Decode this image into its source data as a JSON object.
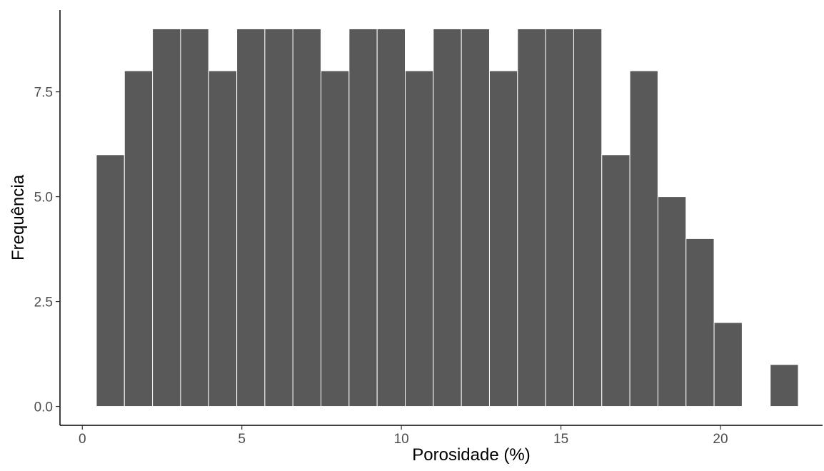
{
  "chart_data": {
    "type": "bar",
    "subtype": "histogram",
    "xlabel": "Porosidade (%)",
    "ylabel": "Frequência",
    "bin_width": 0.88,
    "bins": [
      {
        "start": 0.44,
        "end": 1.32,
        "count": 6
      },
      {
        "start": 1.32,
        "end": 2.2,
        "count": 8
      },
      {
        "start": 2.2,
        "end": 3.08,
        "count": 9
      },
      {
        "start": 3.08,
        "end": 3.96,
        "count": 9
      },
      {
        "start": 3.96,
        "end": 4.84,
        "count": 8
      },
      {
        "start": 4.84,
        "end": 5.72,
        "count": 9
      },
      {
        "start": 5.72,
        "end": 6.6,
        "count": 9
      },
      {
        "start": 6.6,
        "end": 7.48,
        "count": 9
      },
      {
        "start": 7.48,
        "end": 8.36,
        "count": 8
      },
      {
        "start": 8.36,
        "end": 9.24,
        "count": 9
      },
      {
        "start": 9.24,
        "end": 10.12,
        "count": 9
      },
      {
        "start": 10.12,
        "end": 11.0,
        "count": 8
      },
      {
        "start": 11.0,
        "end": 11.88,
        "count": 9
      },
      {
        "start": 11.88,
        "end": 12.76,
        "count": 9
      },
      {
        "start": 12.76,
        "end": 13.64,
        "count": 8
      },
      {
        "start": 13.64,
        "end": 14.52,
        "count": 9
      },
      {
        "start": 14.52,
        "end": 15.4,
        "count": 9
      },
      {
        "start": 15.4,
        "end": 16.28,
        "count": 9
      },
      {
        "start": 16.28,
        "end": 17.16,
        "count": 6
      },
      {
        "start": 17.16,
        "end": 18.04,
        "count": 8
      },
      {
        "start": 18.04,
        "end": 18.92,
        "count": 5
      },
      {
        "start": 18.92,
        "end": 19.8,
        "count": 4
      },
      {
        "start": 19.8,
        "end": 20.68,
        "count": 2
      },
      {
        "start": 20.68,
        "end": 21.56,
        "count": 0
      },
      {
        "start": 21.56,
        "end": 22.44,
        "count": 1
      }
    ],
    "xlim": [
      -0.7,
      23.2
    ],
    "ylim": [
      -0.45,
      9.45
    ],
    "x_ticks": [
      {
        "value": 0,
        "label": "0"
      },
      {
        "value": 5,
        "label": "5"
      },
      {
        "value": 10,
        "label": "10"
      },
      {
        "value": 15,
        "label": "15"
      },
      {
        "value": 20,
        "label": "20"
      }
    ],
    "y_ticks": [
      {
        "value": 0,
        "label": "0.0"
      },
      {
        "value": 2.5,
        "label": "2.5"
      },
      {
        "value": 5,
        "label": "5.0"
      },
      {
        "value": 7.5,
        "label": "7.5"
      }
    ],
    "grid": false,
    "legend": "none",
    "colors": {
      "bar_fill": "#595959",
      "bar_stroke": "#ffffff",
      "axis": "#000000",
      "tick_label": "#4d4d4d",
      "axis_title": "#000000",
      "background": "#ffffff"
    }
  }
}
